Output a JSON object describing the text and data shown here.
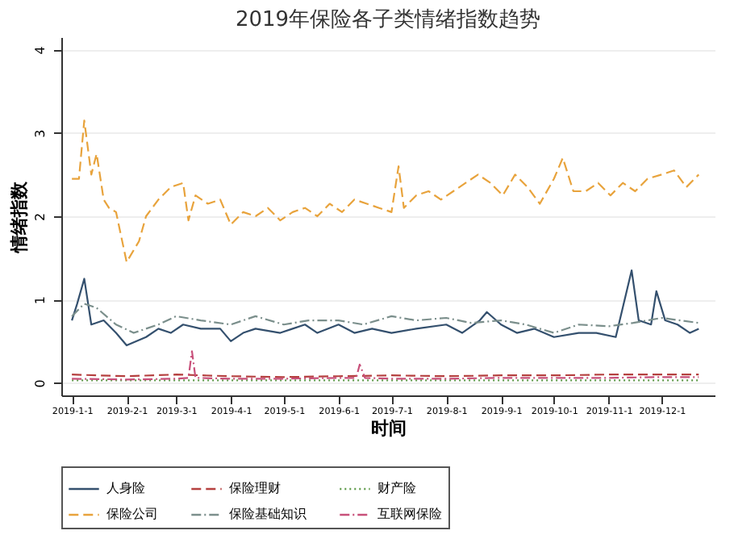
{
  "chart_data": {
    "type": "line",
    "title": "2019年保险各子类情绪指数趋势",
    "xlabel": "时间",
    "ylabel": "情绪指数",
    "xlim": [
      "2018-12-26",
      "2019-12-31"
    ],
    "xticks": [
      {
        "value": "2019-01-01",
        "label": "2019-1-1"
      },
      {
        "value": "2019-02-01",
        "label": "2019-2-1"
      },
      {
        "value": "2019-03-01",
        "label": "2019-3-1"
      },
      {
        "value": "2019-04-01",
        "label": "2019-4-1"
      },
      {
        "value": "2019-05-01",
        "label": "2019-5-1"
      },
      {
        "value": "2019-06-01",
        "label": "2019-6-1"
      },
      {
        "value": "2019-07-01",
        "label": "2019-7-1"
      },
      {
        "value": "2019-08-01",
        "label": "2019-8-1"
      },
      {
        "value": "2019-09-01",
        "label": "2019-9-1"
      },
      {
        "value": "2019-10-01",
        "label": "2019-10-1"
      },
      {
        "value": "2019-11-01",
        "label": "2019-11-1"
      },
      {
        "value": "2019-12-01",
        "label": "2019-12-1"
      }
    ],
    "ylim": [
      -0.15,
      4.15
    ],
    "yticks": [
      0,
      1,
      2,
      3,
      4
    ],
    "grid": "y",
    "legend": "bottom",
    "marker": "none",
    "series": [
      {
        "name": "人身险",
        "color": "#34506e",
        "line_style": "solid",
        "x": [
          "2019-01-01",
          "2019-01-04",
          "2019-01-08",
          "2019-01-12",
          "2019-01-19",
          "2019-01-26",
          "2019-02-01",
          "2019-02-12",
          "2019-02-19",
          "2019-02-26",
          "2019-03-05",
          "2019-03-15",
          "2019-03-26",
          "2019-04-01",
          "2019-04-08",
          "2019-04-15",
          "2019-04-29",
          "2019-05-06",
          "2019-05-13",
          "2019-05-20",
          "2019-06-01",
          "2019-06-10",
          "2019-06-20",
          "2019-07-01",
          "2019-07-15",
          "2019-08-01",
          "2019-08-10",
          "2019-08-20",
          "2019-08-24",
          "2019-09-01",
          "2019-09-10",
          "2019-09-20",
          "2019-10-01",
          "2019-10-15",
          "2019-10-25",
          "2019-11-05",
          "2019-11-14",
          "2019-11-18",
          "2019-11-25",
          "2019-11-28",
          "2019-12-03",
          "2019-12-10",
          "2019-12-17",
          "2019-12-22"
        ],
        "values": [
          0.75,
          0.95,
          1.25,
          0.7,
          0.75,
          0.6,
          0.45,
          0.55,
          0.65,
          0.6,
          0.7,
          0.65,
          0.65,
          0.5,
          0.6,
          0.65,
          0.6,
          0.65,
          0.7,
          0.6,
          0.7,
          0.6,
          0.65,
          0.6,
          0.65,
          0.7,
          0.6,
          0.75,
          0.85,
          0.7,
          0.6,
          0.65,
          0.55,
          0.6,
          0.6,
          0.55,
          1.35,
          0.75,
          0.7,
          1.1,
          0.75,
          0.7,
          0.6,
          0.65
        ]
      },
      {
        "name": "保险理财",
        "color": "#b5403f",
        "line_style": "dashed",
        "x": [
          "2019-01-01",
          "2019-02-01",
          "2019-03-01",
          "2019-04-01",
          "2019-05-01",
          "2019-06-01",
          "2019-07-01",
          "2019-08-01",
          "2019-09-01",
          "2019-10-01",
          "2019-11-01",
          "2019-12-01",
          "2019-12-22"
        ],
        "values": [
          0.1,
          0.08,
          0.1,
          0.08,
          0.07,
          0.08,
          0.09,
          0.08,
          0.09,
          0.09,
          0.1,
          0.1,
          0.1
        ]
      },
      {
        "name": "财产险",
        "color": "#5f9a4a",
        "line_style": "dotted",
        "x": [
          "2019-01-01",
          "2019-03-01",
          "2019-05-01",
          "2019-07-01",
          "2019-09-01",
          "2019-11-01",
          "2019-12-22"
        ],
        "values": [
          0.03,
          0.03,
          0.03,
          0.03,
          0.03,
          0.03,
          0.03
        ]
      },
      {
        "name": "保险公司",
        "color": "#e8a33c",
        "line_style": "dashed",
        "x": [
          "2019-01-01",
          "2019-01-05",
          "2019-01-08",
          "2019-01-12",
          "2019-01-15",
          "2019-01-19",
          "2019-01-22",
          "2019-01-26",
          "2019-02-01",
          "2019-02-08",
          "2019-02-12",
          "2019-02-19",
          "2019-02-26",
          "2019-03-05",
          "2019-03-08",
          "2019-03-12",
          "2019-03-19",
          "2019-03-26",
          "2019-04-01",
          "2019-04-08",
          "2019-04-15",
          "2019-04-22",
          "2019-04-29",
          "2019-05-06",
          "2019-05-13",
          "2019-05-20",
          "2019-05-27",
          "2019-06-03",
          "2019-06-10",
          "2019-06-17",
          "2019-06-24",
          "2019-07-01",
          "2019-07-05",
          "2019-07-08",
          "2019-07-15",
          "2019-07-22",
          "2019-07-29",
          "2019-08-05",
          "2019-08-12",
          "2019-08-19",
          "2019-08-26",
          "2019-09-02",
          "2019-09-09",
          "2019-09-16",
          "2019-09-23",
          "2019-10-01",
          "2019-10-06",
          "2019-10-12",
          "2019-10-19",
          "2019-10-26",
          "2019-11-02",
          "2019-11-09",
          "2019-11-16",
          "2019-11-23",
          "2019-12-01",
          "2019-12-08",
          "2019-12-15",
          "2019-12-22"
        ],
        "values": [
          2.45,
          2.45,
          3.15,
          2.5,
          2.75,
          2.2,
          2.1,
          2.05,
          1.45,
          1.7,
          2.0,
          2.2,
          2.35,
          2.4,
          1.95,
          2.25,
          2.15,
          2.2,
          1.9,
          2.05,
          2.0,
          2.1,
          1.95,
          2.05,
          2.1,
          2.0,
          2.15,
          2.05,
          2.2,
          2.15,
          2.1,
          2.05,
          2.6,
          2.1,
          2.25,
          2.3,
          2.2,
          2.3,
          2.4,
          2.5,
          2.4,
          2.25,
          2.5,
          2.35,
          2.15,
          2.45,
          2.7,
          2.3,
          2.3,
          2.4,
          2.25,
          2.4,
          2.3,
          2.45,
          2.5,
          2.55,
          2.35,
          2.5
        ]
      },
      {
        "name": "保险基础知识",
        "color": "#7b8f8c",
        "line_style": "dashdot",
        "x": [
          "2019-01-01",
          "2019-01-08",
          "2019-01-15",
          "2019-01-26",
          "2019-02-05",
          "2019-02-19",
          "2019-03-01",
          "2019-03-15",
          "2019-04-01",
          "2019-04-15",
          "2019-05-01",
          "2019-05-15",
          "2019-06-01",
          "2019-06-15",
          "2019-07-01",
          "2019-07-15",
          "2019-08-01",
          "2019-08-15",
          "2019-09-01",
          "2019-09-15",
          "2019-10-01",
          "2019-10-15",
          "2019-11-01",
          "2019-11-15",
          "2019-12-01",
          "2019-12-22"
        ],
        "values": [
          0.8,
          0.95,
          0.9,
          0.7,
          0.6,
          0.7,
          0.8,
          0.75,
          0.7,
          0.8,
          0.7,
          0.75,
          0.75,
          0.7,
          0.8,
          0.75,
          0.78,
          0.72,
          0.75,
          0.7,
          0.6,
          0.7,
          0.68,
          0.72,
          0.78,
          0.72
        ]
      },
      {
        "name": "互联网保险",
        "color": "#c8507a",
        "line_style": "dashdot",
        "x": [
          "2019-01-01",
          "2019-02-01",
          "2019-03-01",
          "2019-03-08",
          "2019-03-10",
          "2019-03-12",
          "2019-04-01",
          "2019-05-01",
          "2019-06-01",
          "2019-06-11",
          "2019-06-13",
          "2019-06-16",
          "2019-07-01",
          "2019-08-01",
          "2019-09-01",
          "2019-10-01",
          "2019-11-01",
          "2019-12-01",
          "2019-12-22"
        ],
        "values": [
          0.05,
          0.04,
          0.05,
          0.06,
          0.38,
          0.06,
          0.05,
          0.05,
          0.06,
          0.06,
          0.22,
          0.06,
          0.05,
          0.05,
          0.06,
          0.06,
          0.06,
          0.07,
          0.07
        ]
      }
    ]
  }
}
